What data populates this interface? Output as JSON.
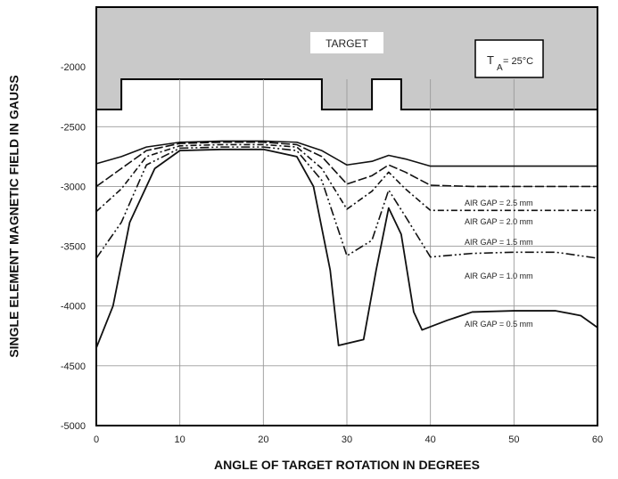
{
  "chart_data": {
    "type": "line",
    "xlabel": "ANGLE OF TARGET ROTATION IN DEGREES",
    "ylabel": "SINGLE ELEMENT MAGNETIC FIELD IN GAUSS",
    "xlim": [
      0,
      60
    ],
    "ylim": [
      -5000,
      -1500
    ],
    "xticks": [
      "0",
      "10",
      "20",
      "30",
      "40",
      "50",
      "60"
    ],
    "yticks": [
      "-2000",
      "-2500",
      "-3000",
      "-3500",
      "-4000",
      "-4500",
      "-5000"
    ],
    "grid": true,
    "annotations": {
      "target_label": "TARGET",
      "temp_label_prefix": "T",
      "temp_label_sub": "A",
      "temp_label_suffix": " = 25°C"
    },
    "target_profile": {
      "x": [
        0,
        3,
        3,
        27,
        27,
        33,
        33,
        36.5,
        36.5,
        60
      ],
      "level": [
        "low",
        "low",
        "high",
        "high",
        "low",
        "low",
        "high",
        "high",
        "low",
        "low"
      ]
    },
    "series": [
      {
        "name": "AIR GAP = 2.5 mm",
        "x": [
          0,
          3,
          6,
          10,
          15,
          20,
          24,
          27,
          30,
          33,
          35,
          37,
          40,
          45,
          50,
          55,
          60
        ],
        "values": [
          -2810,
          -2750,
          -2670,
          -2630,
          -2620,
          -2620,
          -2630,
          -2700,
          -2820,
          -2790,
          -2740,
          -2770,
          -2830,
          -2830,
          -2830,
          -2830,
          -2830
        ]
      },
      {
        "name": "AIR GAP = 2.0 mm",
        "x": [
          0,
          3,
          6,
          10,
          15,
          20,
          24,
          27,
          30,
          33,
          35,
          37,
          40,
          45,
          50,
          55,
          60
        ],
        "values": [
          -3000,
          -2850,
          -2700,
          -2640,
          -2630,
          -2630,
          -2650,
          -2750,
          -2980,
          -2910,
          -2820,
          -2880,
          -2990,
          -3000,
          -3000,
          -3000,
          -3000
        ]
      },
      {
        "name": "AIR GAP = 1.5 mm",
        "x": [
          0,
          3,
          6,
          10,
          15,
          20,
          24,
          27,
          30,
          33,
          35,
          37,
          40,
          45,
          50,
          55,
          60
        ],
        "values": [
          -3210,
          -3020,
          -2750,
          -2660,
          -2650,
          -2650,
          -2670,
          -2850,
          -3190,
          -3040,
          -2880,
          -3020,
          -3200,
          -3200,
          -3200,
          -3200,
          -3200
        ]
      },
      {
        "name": "AIR GAP = 1.0 mm",
        "x": [
          0,
          3,
          6,
          10,
          15,
          20,
          24,
          27,
          30,
          33,
          35,
          37,
          40,
          45,
          50,
          55,
          60
        ],
        "values": [
          -3600,
          -3300,
          -2820,
          -2680,
          -2670,
          -2670,
          -2700,
          -2950,
          -3580,
          -3450,
          -3030,
          -3250,
          -3590,
          -3560,
          -3550,
          -3550,
          -3600
        ]
      },
      {
        "name": "AIR GAP = 0.5 mm",
        "x": [
          0,
          2,
          4,
          7,
          10,
          15,
          20,
          24,
          26,
          28,
          29,
          32,
          33.5,
          35,
          36.5,
          38,
          39,
          42,
          45,
          50,
          55,
          58,
          60
        ],
        "values": [
          -4350,
          -4000,
          -3300,
          -2850,
          -2700,
          -2690,
          -2690,
          -2750,
          -3000,
          -3700,
          -4330,
          -4280,
          -3700,
          -3180,
          -3400,
          -4050,
          -4200,
          -4120,
          -4050,
          -4040,
          -4040,
          -4080,
          -4180
        ]
      }
    ]
  }
}
